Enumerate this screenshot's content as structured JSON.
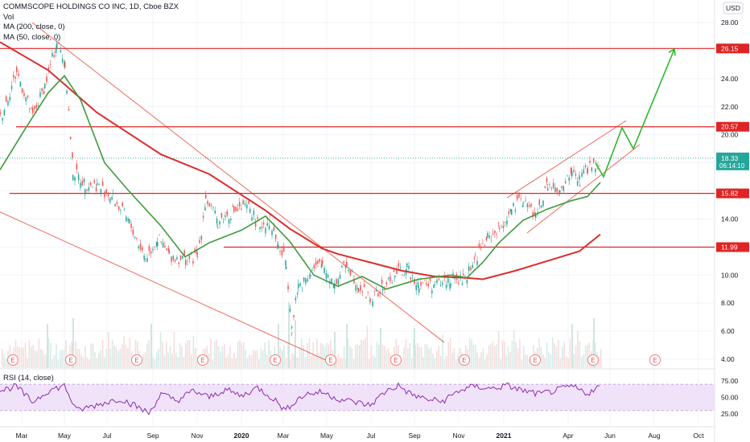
{
  "chart_data": {
    "type": "line",
    "legend": {
      "title": "COMMSCOPE HOLDINGS CO INC, 1D, Cboe BZX",
      "vol": "Vol",
      "ma200": "MA (200, close, 0)",
      "ma50": "MA (50, close, 0)",
      "rsi": "RSI (14, close)"
    },
    "currency": "USD",
    "x_ticks": [
      "Mar",
      "May",
      "Jul",
      "Sep",
      "Nov",
      "2020",
      "Mar",
      "May",
      "Jul",
      "Sep",
      "Nov",
      "2021",
      "Apr",
      "Jun",
      "Aug",
      "Oct"
    ],
    "y_ticks": [
      28,
      26,
      24,
      22,
      20,
      18,
      16,
      14,
      12,
      10,
      8,
      6,
      4
    ],
    "y_tick_labels": [
      "28.00",
      "26.00",
      "24.00",
      "22.00",
      "20.00",
      "18.00",
      "16.00",
      "14.00",
      "12.00",
      "10.00",
      "8.00",
      "6.00",
      "4.00"
    ],
    "ylim": [
      3.5,
      29.3
    ],
    "rsi_ticks": [
      75,
      50,
      25
    ],
    "rsi_tick_labels": [
      "75.00",
      "50.00",
      "25.00"
    ],
    "rsi_band": [
      30,
      70
    ],
    "price_labels": [
      {
        "value": 26.15,
        "text": "26.15"
      },
      {
        "value": 20.57,
        "text": "20.57"
      },
      {
        "value": 15.82,
        "text": "15.82"
      },
      {
        "value": 11.99,
        "text": "11.99"
      }
    ],
    "last_price": {
      "value": 18.33,
      "text": "18.33",
      "countdown": "06:14:10"
    },
    "earnings_marker": "E",
    "colors": {
      "price": "#d4423e",
      "up": "#26a69a",
      "down": "#ef5350",
      "ma200": "#dc2c2c",
      "ma50": "#3d9b3d",
      "forecast": "#2eb82e",
      "rsi": "#8e2bb5",
      "rsi_band": "#e9d7f6",
      "hline": "#e02424",
      "trend": "#ec6b5b",
      "volume": "#dde8e4"
    },
    "series": [
      {
        "name": "MA (200, close, 0)",
        "x": [
          0,
          60,
          120,
          200,
          260,
          330,
          360,
          400,
          420,
          460,
          500,
          540,
          580,
          600,
          640,
          680,
          720,
          746
        ],
        "y": [
          26.6,
          24.6,
          21.6,
          18.6,
          17.2,
          14.6,
          13.3,
          11.9,
          11.5,
          10.9,
          10.3,
          9.9,
          9.8,
          9.7,
          10.3,
          11.0,
          11.7,
          12.9
        ]
      },
      {
        "name": "MA (50, close, 0)",
        "x": [
          0,
          30,
          60,
          80,
          100,
          130,
          160,
          200,
          230,
          260,
          300,
          330,
          360,
          390,
          420,
          450,
          480,
          520,
          560,
          580,
          600,
          620,
          650,
          680,
          710,
          730,
          746
        ],
        "y": [
          17.5,
          20.3,
          23.0,
          24.2,
          22.5,
          18.0,
          16.0,
          13.5,
          11.3,
          12.3,
          13.2,
          14.2,
          12.4,
          10.0,
          9.2,
          9.9,
          9.0,
          9.7,
          10.0,
          9.8,
          10.9,
          12.3,
          13.9,
          14.7,
          15.3,
          15.6,
          16.6
        ]
      },
      {
        "name": "Close",
        "x": [
          0,
          20,
          40,
          55,
          70,
          80,
          90,
          105,
          120,
          140,
          160,
          180,
          195,
          210,
          230,
          245,
          255,
          270,
          290,
          310,
          320,
          335,
          345,
          355,
          362,
          370,
          385,
          400,
          415,
          430,
          445,
          460,
          475,
          490,
          505,
          520,
          540,
          560,
          575,
          590,
          605,
          620,
          635,
          650,
          665,
          680,
          695,
          710,
          720,
          730,
          740,
          746
        ],
        "y": [
          21.2,
          24.5,
          21.3,
          23.5,
          26.6,
          25.2,
          17.4,
          16.5,
          16.4,
          15.5,
          13.7,
          11.2,
          12.6,
          11.4,
          11.1,
          11.3,
          15.5,
          13.8,
          14.6,
          14.8,
          13.5,
          13.9,
          12.0,
          11.0,
          6.2,
          9.2,
          10.2,
          10.8,
          9.3,
          10.9,
          9.2,
          8.3,
          9.0,
          10.1,
          10.4,
          9.4,
          9.3,
          9.7,
          9.6,
          11.2,
          12.6,
          13.3,
          14.6,
          15.4,
          14.1,
          16.4,
          15.7,
          17.4,
          16.7,
          17.7,
          17.8,
          18.33
        ]
      },
      {
        "name": "RSI (14, close)",
        "x": [
          0,
          20,
          40,
          60,
          80,
          95,
          110,
          130,
          150,
          170,
          185,
          200,
          220,
          240,
          260,
          280,
          300,
          320,
          340,
          355,
          365,
          380,
          400,
          420,
          440,
          460,
          480,
          495,
          510,
          530,
          550,
          570,
          590,
          610,
          630,
          650,
          670,
          690,
          710,
          730,
          746
        ],
        "y": [
          60,
          67,
          43,
          60,
          68,
          30,
          35,
          42,
          48,
          36,
          26,
          55,
          45,
          60,
          50,
          62,
          52,
          65,
          48,
          30,
          43,
          55,
          58,
          48,
          43,
          38,
          60,
          68,
          55,
          47,
          44,
          60,
          67,
          63,
          68,
          60,
          55,
          60,
          67,
          56,
          67
        ]
      }
    ],
    "volume_spikes": [
      {
        "x": 58,
        "v": 0.55
      },
      {
        "x": 90,
        "v": 0.62
      },
      {
        "x": 187,
        "v": 0.55
      },
      {
        "x": 345,
        "v": 0.55
      },
      {
        "x": 358,
        "v": 0.82
      },
      {
        "x": 366,
        "v": 0.6
      },
      {
        "x": 415,
        "v": 0.45
      },
      {
        "x": 430,
        "v": 0.55
      },
      {
        "x": 472,
        "v": 0.5
      },
      {
        "x": 514,
        "v": 0.5
      },
      {
        "x": 710,
        "v": 0.55
      },
      {
        "x": 737,
        "v": 0.62
      }
    ],
    "forecast": {
      "x": [
        740,
        750,
        773,
        787,
        838
      ],
      "y": [
        18.0,
        17.0,
        20.5,
        19.0,
        26.1
      ]
    },
    "hlines": [
      {
        "value": 26.15,
        "x_start": 0
      },
      {
        "value": 20.57,
        "x_start": 20
      },
      {
        "value": 15.82,
        "x_start": 12
      },
      {
        "value": 11.99,
        "x_start": 278
      }
    ],
    "trendlines": [
      {
        "x1": 40,
        "y1": 28.0,
        "x2": 552,
        "y2": 5.2
      },
      {
        "x1": 0,
        "y1": 14.5,
        "x2": 410,
        "y2": 3.8
      },
      {
        "x1": 630,
        "y1": 15.5,
        "x2": 778,
        "y2": 21.0
      },
      {
        "x1": 655,
        "y1": 13.0,
        "x2": 795,
        "y2": 19.3
      }
    ],
    "earnings_x": [
      16,
      88,
      170,
      252,
      342,
      411,
      492,
      577,
      665,
      737,
      814
    ]
  }
}
